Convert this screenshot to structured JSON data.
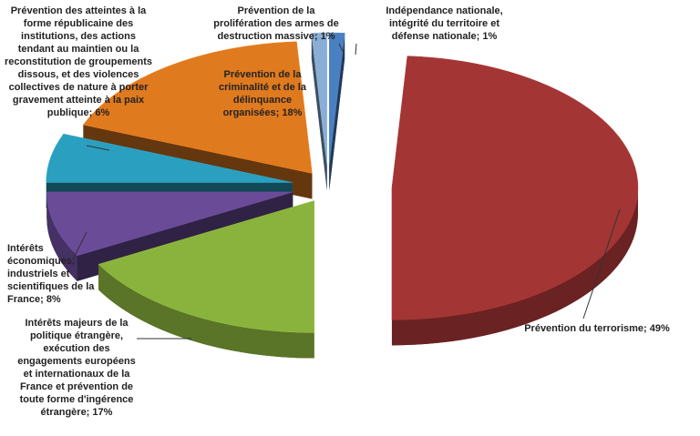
{
  "chart_data": {
    "type": "pie",
    "categories": [
      "Indépendance nationale, intégrité du territoire et défense nationale;",
      "Prévention du terrorisme;",
      "Intérêts majeurs de la politique étrangère, exécution des engagements européens et internationaux de la France et prévention de toute forme d'ingérence étrangère;",
      "Intérêts économiques, industriels et scientifiques de la France;",
      "Prévention des atteintes à la forme républicaine des institutions, des actions tendant au maintien ou la reconstitution de groupements dissous, et des violences collectives de nature à porter gravement atteinte à la paix publique;",
      "Prévention de la criminalité et de la délinquance organisées;",
      "Prévention de la prolifération des armes de destruction massive;"
    ],
    "values": [
      1,
      49,
      17,
      8,
      6,
      18,
      1
    ],
    "value_labels": [
      "1%",
      "49%",
      "17%",
      "8%",
      "6%",
      "18%",
      "1%"
    ],
    "colors": [
      "#4a7fc1",
      "#a33535",
      "#8ab33d",
      "#6a4b98",
      "#2b9fc0",
      "#e07a1e",
      "#8aaed6"
    ]
  }
}
